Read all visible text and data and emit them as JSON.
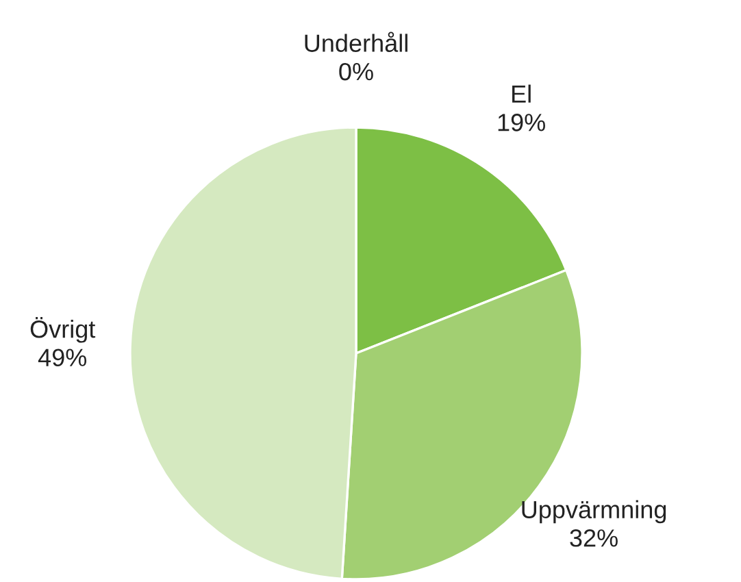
{
  "chart_data": {
    "type": "pie",
    "categories": [
      "Underhåll",
      "El",
      "Uppvärmning",
      "Övrigt"
    ],
    "values": [
      0,
      19,
      32,
      49
    ],
    "value_labels": [
      "0%",
      "19%",
      "32%",
      "49%"
    ],
    "colors": [
      "#5fa82e",
      "#7dbf45",
      "#a2cf72",
      "#d5e9c0"
    ]
  }
}
